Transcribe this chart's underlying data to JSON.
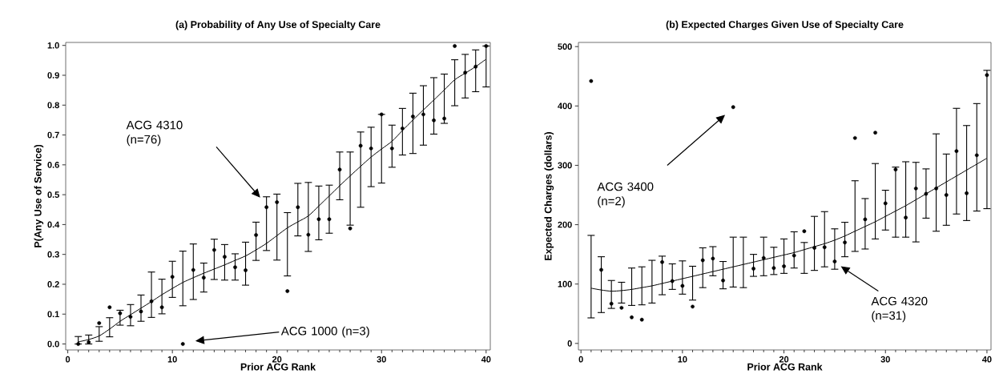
{
  "chart_data": [
    {
      "type": "scatter",
      "title": "(a) Probability of Any Use of Specialty Care",
      "xlabel": "Prior ACG Rank",
      "ylabel": "P(Any Use of Service)",
      "xlim": [
        -0.2,
        40.4
      ],
      "xticks": [
        0,
        10,
        20,
        30,
        40
      ],
      "ylim": [
        -0.02,
        1.01
      ],
      "yticks": [
        {
          "value": 0,
          "label": "0.0"
        },
        0.1,
        0.2,
        0.3,
        0.4,
        0.5,
        0.6,
        0.7,
        0.8,
        0.9,
        {
          "value": 1,
          "label": "1.0"
        }
      ],
      "grid": false,
      "series": [
        {
          "type": "scatter",
          "color": "#000000",
          "marker": "circle",
          "x": [
            1,
            2,
            3,
            4,
            5,
            6,
            7,
            8,
            9,
            10,
            11,
            12,
            13,
            14,
            15,
            16,
            17,
            18,
            19,
            20,
            21,
            22,
            23,
            24,
            25,
            26,
            27,
            28,
            29,
            30,
            31,
            32,
            33,
            34,
            35,
            36,
            37,
            38,
            39,
            40
          ],
          "values": [
            0.0,
            0.006,
            0.07,
            0.123,
            0.103,
            0.091,
            0.109,
            0.143,
            0.123,
            0.225,
            0.0,
            0.248,
            0.222,
            0.315,
            0.292,
            0.257,
            0.247,
            0.365,
            0.458,
            0.475,
            0.177,
            0.458,
            0.366,
            0.418,
            0.418,
            0.584,
            0.387,
            0.664,
            0.655,
            0.769,
            0.655,
            0.722,
            0.762,
            0.769,
            0.749,
            0.755,
            0.998,
            0.909,
            0.929,
            0.998
          ]
        },
        {
          "type": "line",
          "color": "#000000",
          "marker": "none",
          "line_style": "solid",
          "x": [
            1,
            2,
            3,
            4,
            5,
            6,
            7,
            8,
            9,
            10,
            11,
            12,
            13,
            14,
            15,
            16,
            17,
            18,
            19,
            20,
            21,
            22,
            23,
            24,
            25,
            26,
            27,
            28,
            29,
            30,
            31,
            32,
            33,
            34,
            35,
            36,
            37,
            38,
            39,
            40
          ],
          "values": [
            0.007,
            0.015,
            0.027,
            0.05,
            0.076,
            0.098,
            0.12,
            0.142,
            0.165,
            0.186,
            0.206,
            0.222,
            0.237,
            0.251,
            0.265,
            0.28,
            0.295,
            0.315,
            0.337,
            0.363,
            0.389,
            0.409,
            0.429,
            0.462,
            0.496,
            0.53,
            0.563,
            0.595,
            0.626,
            0.653,
            0.679,
            0.715,
            0.75,
            0.784,
            0.817,
            0.851,
            0.885,
            0.907,
            0.929,
            0.954
          ],
          "errors": [
            [
              0.0,
              0.025
            ],
            [
              0.0,
              0.03
            ],
            [
              0.009,
              0.058
            ],
            [
              0.024,
              0.088
            ],
            [
              0.063,
              0.113
            ],
            [
              0.061,
              0.132
            ],
            [
              0.076,
              0.164
            ],
            [
              0.089,
              0.241
            ],
            [
              0.101,
              0.217
            ],
            [
              0.156,
              0.277
            ],
            [
              0.128,
              0.311
            ],
            [
              0.149,
              0.335
            ],
            [
              0.174,
              0.271
            ],
            [
              0.216,
              0.351
            ],
            [
              0.214,
              0.333
            ],
            [
              0.214,
              0.302
            ],
            [
              0.197,
              0.341
            ],
            [
              0.28,
              0.408
            ],
            [
              0.313,
              0.493
            ],
            [
              0.281,
              0.502
            ],
            [
              0.228,
              0.44
            ],
            [
              0.362,
              0.538
            ],
            [
              0.31,
              0.541
            ],
            [
              0.349,
              0.529
            ],
            [
              0.371,
              0.532
            ],
            [
              0.483,
              0.643
            ],
            [
              0.398,
              0.643
            ],
            [
              0.458,
              0.71
            ],
            [
              0.527,
              0.726
            ],
            [
              0.539,
              0.769
            ],
            [
              0.592,
              0.733
            ],
            [
              0.633,
              0.789
            ],
            [
              0.638,
              0.84
            ],
            [
              0.666,
              0.865
            ],
            [
              0.703,
              0.892
            ],
            [
              0.739,
              0.904
            ],
            [
              0.798,
              0.952
            ],
            [
              0.824,
              0.97
            ],
            [
              0.845,
              0.985
            ],
            [
              0.861,
              0.998
            ]
          ]
        }
      ],
      "annotations": [
        "ACG 4310 (n=76)",
        "ACG 1000 (n=3)"
      ]
    },
    {
      "type": "scatter",
      "title": "(b) Expected Charges Given Use of Specialty Care",
      "xlabel": "Prior ACG Rank",
      "ylabel": "Expected Charges (dollars)",
      "xlim": [
        -0.25,
        40.4
      ],
      "xticks": [
        0,
        10,
        20,
        30,
        40
      ],
      "ylim": [
        -11,
        507
      ],
      "yticks": [
        0,
        100,
        200,
        300,
        400,
        500
      ],
      "grid": false,
      "series": [
        {
          "type": "scatter",
          "color": "#000000",
          "marker": "circle",
          "x": [
            1,
            2,
            3,
            4,
            5,
            6,
            7,
            8,
            9,
            10,
            11,
            12,
            13,
            14,
            15,
            16,
            17,
            18,
            19,
            20,
            21,
            22,
            23,
            24,
            25,
            26,
            27,
            28,
            29,
            30,
            31,
            32,
            33,
            34,
            35,
            36,
            37,
            38,
            39,
            40
          ],
          "values": [
            442,
            124,
            67,
            60,
            44,
            40,
            null,
            137,
            105,
            97,
            62,
            140,
            143,
            106,
            398,
            null,
            126,
            144,
            127,
            130,
            148,
            189,
            161,
            162,
            138,
            170,
            346,
            209,
            355,
            236,
            293,
            212,
            261,
            252,
            261,
            250,
            324,
            253,
            317,
            452
          ]
        },
        {
          "type": "line",
          "color": "#000000",
          "marker": "none",
          "line_style": "solid",
          "x": [
            1,
            2,
            3,
            4,
            5,
            6,
            7,
            8,
            9,
            10,
            11,
            12,
            13,
            14,
            15,
            16,
            17,
            18,
            19,
            20,
            21,
            22,
            23,
            24,
            25,
            26,
            27,
            28,
            29,
            30,
            31,
            32,
            33,
            34,
            35,
            36,
            37,
            38,
            39,
            40
          ],
          "values": [
            93,
            90,
            88,
            89,
            91,
            94,
            97,
            101,
            105,
            109,
            113,
            117,
            121,
            125,
            129,
            133,
            137,
            141,
            145,
            149,
            153,
            158,
            163,
            168,
            174,
            181,
            189,
            197,
            205,
            214,
            223,
            232,
            242,
            252,
            262,
            272,
            282,
            292,
            302,
            312
          ],
          "errors": [
            [
              43,
              182
            ],
            [
              52,
              146
            ],
            [
              59,
              106
            ],
            [
              68,
              103
            ],
            [
              64,
              127
            ],
            [
              65,
              129
            ],
            [
              68,
              140
            ],
            [
              82,
              147
            ],
            [
              91,
              134
            ],
            [
              83,
              139
            ],
            [
              73,
              130
            ],
            [
              94,
              161
            ],
            [
              114,
              163
            ],
            [
              92,
              138
            ],
            [
              95,
              179
            ],
            [
              94,
              179
            ],
            [
              113,
              150
            ],
            [
              114,
              179
            ],
            [
              116,
              162
            ],
            [
              118,
              176
            ],
            [
              127,
              188
            ],
            [
              118,
              170
            ],
            [
              123,
              214
            ],
            [
              129,
              222
            ],
            [
              125,
              193
            ],
            [
              146,
              204
            ],
            [
              155,
              274
            ],
            [
              159,
              244
            ],
            [
              176,
              303
            ],
            [
              191,
              258
            ],
            [
              179,
              297
            ],
            [
              179,
              306
            ],
            [
              171,
              305
            ],
            [
              211,
              294
            ],
            [
              189,
              353
            ],
            [
              199,
              319
            ],
            [
              218,
              396
            ],
            [
              207,
              367
            ],
            [
              223,
              404
            ],
            [
              227,
              460
            ]
          ]
        }
      ],
      "annotations": [
        "ACG 3400 (n=2)",
        "ACG 4320 (n=31)"
      ]
    }
  ]
}
